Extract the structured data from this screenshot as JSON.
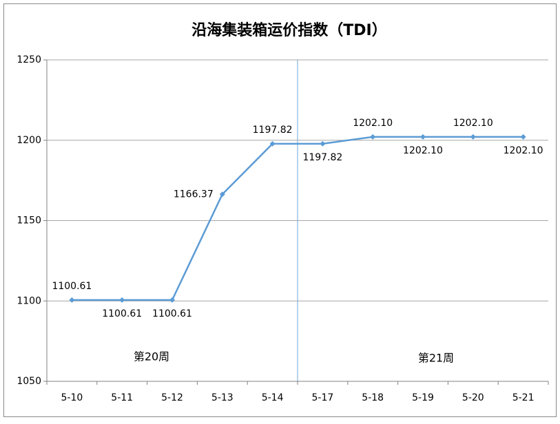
{
  "chart_data": {
    "type": "line",
    "title": "沿海集装箱运价指数（TDI）",
    "categories": [
      "5-10",
      "5-11",
      "5-12",
      "5-13",
      "5-14",
      "5-17",
      "5-18",
      "5-19",
      "5-20",
      "5-21"
    ],
    "values": [
      1100.61,
      1100.61,
      1100.61,
      1166.37,
      1197.82,
      1197.82,
      1202.1,
      1202.1,
      1202.1,
      1202.1
    ],
    "value_labels": [
      "1100.61",
      "1100.61",
      "1100.61",
      "1166.37",
      "1197.82",
      "1197.82",
      "1202.10",
      "1202.10",
      "1202.10",
      "1202.10"
    ],
    "color": "#5b9bd5",
    "ylim": [
      1050,
      1250
    ],
    "yticks": [
      1050,
      1100,
      1150,
      1200,
      1250
    ],
    "grid": true,
    "annotations": [
      "第20周",
      "第21周"
    ]
  }
}
